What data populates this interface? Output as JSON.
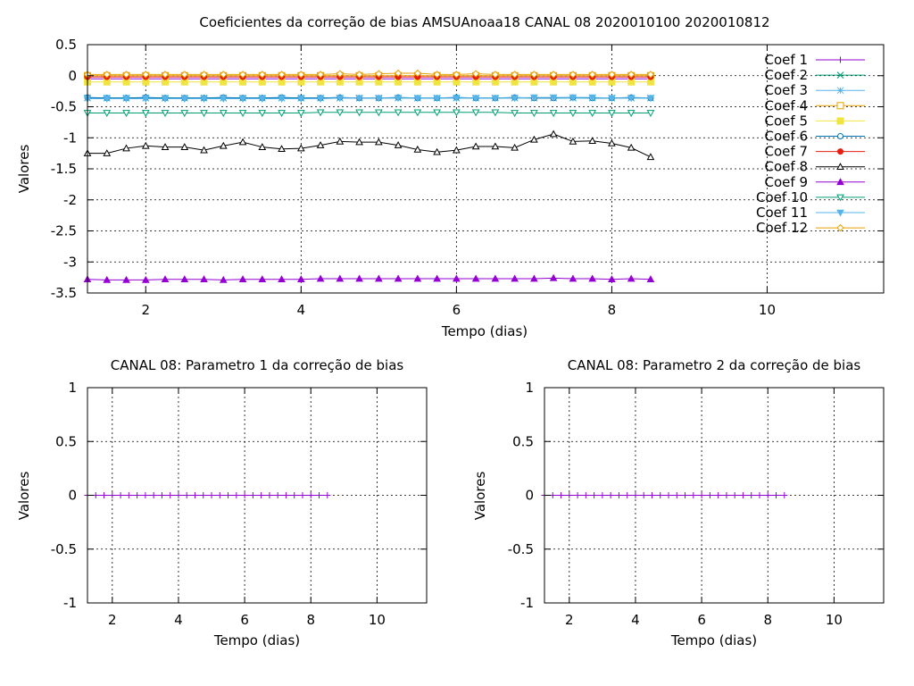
{
  "chart_data": [
    {
      "type": "line",
      "title": "Coeficientes da correção de bias AMSUAnoaa18 CANAL 08 2020010100 2020010812",
      "xlabel": "Tempo (dias)",
      "ylabel": "Valores",
      "xlim": [
        1.25,
        11.5
      ],
      "ylim": [
        -3.5,
        0.5
      ],
      "xticks": [
        2,
        4,
        6,
        8,
        10
      ],
      "yticks": [
        0.5,
        0,
        -0.5,
        -1,
        -1.5,
        -2,
        -2.5,
        -3,
        -3.5
      ],
      "ytick_labels": [
        "0.5",
        "0",
        "-0.5",
        "-1",
        "-1.5",
        "-2",
        "-2.5",
        "-3",
        "-3.5"
      ],
      "grid": true,
      "legend": "top-right",
      "x": [
        1.25,
        1.5,
        1.75,
        2.0,
        2.25,
        2.5,
        2.75,
        3.0,
        3.25,
        3.5,
        3.75,
        4.0,
        4.25,
        4.5,
        4.75,
        5.0,
        5.25,
        5.5,
        5.75,
        6.0,
        6.25,
        6.5,
        6.75,
        7.0,
        7.25,
        7.5,
        7.75,
        8.0,
        8.25,
        8.5
      ],
      "series": [
        {
          "name": "Coef 1",
          "color": "#9400d3",
          "marker": "plus",
          "values": [
            -0.05,
            -0.05,
            -0.05,
            -0.05,
            -0.05,
            -0.05,
            -0.05,
            -0.05,
            -0.05,
            -0.05,
            -0.05,
            -0.05,
            -0.05,
            -0.05,
            -0.05,
            -0.05,
            -0.05,
            -0.05,
            -0.05,
            -0.05,
            -0.05,
            -0.05,
            -0.05,
            -0.05,
            -0.05,
            -0.05,
            -0.05,
            -0.05,
            -0.05,
            -0.05
          ]
        },
        {
          "name": "Coef 2",
          "color": "#009e73",
          "marker": "x",
          "values": [
            -0.36,
            -0.36,
            -0.36,
            -0.36,
            -0.36,
            -0.36,
            -0.36,
            -0.36,
            -0.36,
            -0.36,
            -0.36,
            -0.36,
            -0.36,
            -0.36,
            -0.36,
            -0.36,
            -0.36,
            -0.36,
            -0.36,
            -0.36,
            -0.36,
            -0.36,
            -0.36,
            -0.36,
            -0.36,
            -0.36,
            -0.36,
            -0.36,
            -0.36,
            -0.36
          ]
        },
        {
          "name": "Coef 3",
          "color": "#56b4e9",
          "marker": "star",
          "values": [
            -0.36,
            -0.36,
            -0.36,
            -0.36,
            -0.36,
            -0.36,
            -0.36,
            -0.36,
            -0.36,
            -0.36,
            -0.36,
            -0.36,
            -0.36,
            -0.36,
            -0.36,
            -0.36,
            -0.36,
            -0.36,
            -0.36,
            -0.36,
            -0.36,
            -0.36,
            -0.36,
            -0.36,
            -0.36,
            -0.36,
            -0.36,
            -0.36,
            -0.36,
            -0.36
          ]
        },
        {
          "name": "Coef 4",
          "color": "#e69f00",
          "marker": "square-open",
          "values": [
            0.0,
            0.0,
            0.0,
            0.0,
            0.0,
            0.0,
            0.0,
            0.0,
            0.0,
            0.0,
            0.0,
            0.0,
            0.0,
            0.0,
            0.0,
            0.0,
            0.0,
            0.0,
            0.0,
            0.0,
            0.0,
            0.0,
            0.0,
            0.0,
            0.0,
            0.0,
            0.0,
            0.0,
            0.0,
            0.0
          ]
        },
        {
          "name": "Coef 5",
          "color": "#f0e442",
          "marker": "square-filled",
          "values": [
            -0.1,
            -0.1,
            -0.1,
            -0.1,
            -0.1,
            -0.1,
            -0.1,
            -0.1,
            -0.1,
            -0.1,
            -0.1,
            -0.1,
            -0.1,
            -0.1,
            -0.1,
            -0.1,
            -0.1,
            -0.1,
            -0.1,
            -0.1,
            -0.1,
            -0.1,
            -0.1,
            -0.1,
            -0.1,
            -0.1,
            -0.1,
            -0.1,
            -0.1,
            -0.1
          ]
        },
        {
          "name": "Coef 6",
          "color": "#0072b2",
          "marker": "circle-open",
          "values": [
            -0.35,
            -0.36,
            -0.36,
            -0.35,
            -0.36,
            -0.36,
            -0.36,
            -0.35,
            -0.36,
            -0.36,
            -0.35,
            -0.36,
            -0.36,
            -0.35,
            -0.36,
            -0.36,
            -0.35,
            -0.36,
            -0.36,
            -0.35,
            -0.36,
            -0.36,
            -0.35,
            -0.36,
            -0.36,
            -0.35,
            -0.36,
            -0.36,
            -0.35,
            -0.36
          ]
        },
        {
          "name": "Coef 7",
          "color": "#e51e10",
          "marker": "circle-filled",
          "values": [
            -0.02,
            -0.02,
            -0.02,
            -0.02,
            -0.02,
            -0.02,
            -0.02,
            -0.02,
            -0.02,
            -0.02,
            -0.02,
            -0.02,
            -0.02,
            -0.02,
            -0.02,
            -0.02,
            -0.02,
            -0.02,
            -0.02,
            -0.02,
            -0.02,
            -0.02,
            -0.02,
            -0.02,
            -0.02,
            -0.02,
            -0.02,
            -0.02,
            -0.02,
            -0.02
          ]
        },
        {
          "name": "Coef 8",
          "color": "#000000",
          "marker": "triangle-open",
          "values": [
            -1.25,
            -1.25,
            -1.17,
            -1.13,
            -1.15,
            -1.15,
            -1.2,
            -1.13,
            -1.07,
            -1.15,
            -1.18,
            -1.17,
            -1.12,
            -1.06,
            -1.07,
            -1.07,
            -1.12,
            -1.19,
            -1.23,
            -1.2,
            -1.14,
            -1.14,
            -1.16,
            -1.03,
            -0.94,
            -1.06,
            -1.05,
            -1.09,
            -1.16,
            -1.31
          ]
        },
        {
          "name": "Coef 9",
          "color": "#9400d3",
          "marker": "triangle-filled",
          "values": [
            -3.28,
            -3.29,
            -3.29,
            -3.29,
            -3.28,
            -3.28,
            -3.28,
            -3.29,
            -3.28,
            -3.28,
            -3.28,
            -3.28,
            -3.27,
            -3.27,
            -3.27,
            -3.27,
            -3.27,
            -3.27,
            -3.27,
            -3.27,
            -3.27,
            -3.27,
            -3.27,
            -3.27,
            -3.26,
            -3.27,
            -3.27,
            -3.28,
            -3.27,
            -3.28
          ]
        },
        {
          "name": "Coef 10",
          "color": "#009e73",
          "marker": "triangle-down-open",
          "values": [
            -0.6,
            -0.6,
            -0.6,
            -0.6,
            -0.6,
            -0.6,
            -0.6,
            -0.6,
            -0.6,
            -0.6,
            -0.6,
            -0.6,
            -0.59,
            -0.59,
            -0.59,
            -0.59,
            -0.59,
            -0.59,
            -0.59,
            -0.59,
            -0.59,
            -0.59,
            -0.6,
            -0.6,
            -0.6,
            -0.6,
            -0.6,
            -0.6,
            -0.6,
            -0.6
          ]
        },
        {
          "name": "Coef 11",
          "color": "#56b4e9",
          "marker": "triangle-down-filled",
          "values": [
            -0.37,
            -0.37,
            -0.37,
            -0.37,
            -0.37,
            -0.37,
            -0.37,
            -0.37,
            -0.37,
            -0.37,
            -0.37,
            -0.37,
            -0.37,
            -0.36,
            -0.36,
            -0.36,
            -0.36,
            -0.36,
            -0.36,
            -0.36,
            -0.36,
            -0.36,
            -0.36,
            -0.35,
            -0.35,
            -0.35,
            -0.35,
            -0.36,
            -0.36,
            -0.36
          ]
        },
        {
          "name": "Coef 12",
          "color": "#e69f00",
          "marker": "diamond-open",
          "values": [
            0.02,
            0.02,
            0.02,
            0.02,
            0.02,
            0.02,
            0.02,
            0.02,
            0.02,
            0.02,
            0.02,
            0.02,
            0.02,
            0.03,
            0.02,
            0.03,
            0.04,
            0.04,
            0.02,
            0.02,
            0.03,
            0.02,
            0.02,
            0.02,
            0.02,
            0.02,
            0.02,
            0.02,
            0.02,
            0.02
          ]
        }
      ]
    },
    {
      "type": "line",
      "title": "CANAL 08: Parametro 1 da correção de bias",
      "xlabel": "Tempo (dias)",
      "ylabel": "Valores",
      "xlim": [
        1.25,
        11.5
      ],
      "ylim": [
        -1,
        1
      ],
      "xticks": [
        2,
        4,
        6,
        8,
        10
      ],
      "yticks": [
        1,
        0.5,
        0,
        -0.5,
        -1
      ],
      "ytick_labels": [
        "1",
        "0.5",
        "0",
        "-0.5",
        "-1"
      ],
      "grid": true,
      "x": [
        1.25,
        1.5,
        1.75,
        2.0,
        2.25,
        2.5,
        2.75,
        3.0,
        3.25,
        3.5,
        3.75,
        4.0,
        4.25,
        4.5,
        4.75,
        5.0,
        5.25,
        5.5,
        5.75,
        6.0,
        6.25,
        6.5,
        6.75,
        7.0,
        7.25,
        7.5,
        7.75,
        8.0,
        8.25,
        8.5
      ],
      "series": [
        {
          "color": "#9400d3",
          "marker": "plus",
          "values": [
            0,
            0,
            0,
            0,
            0,
            0,
            0,
            0,
            0,
            0,
            0,
            0,
            0,
            0,
            0,
            0,
            0,
            0,
            0,
            0,
            0,
            0,
            0,
            0,
            0,
            0,
            0,
            0,
            0,
            0
          ]
        }
      ]
    },
    {
      "type": "line",
      "title": "CANAL 08: Parametro 2 da correção de bias",
      "xlabel": "Tempo (dias)",
      "ylabel": "Valores",
      "xlim": [
        1.25,
        11.5
      ],
      "ylim": [
        -1,
        1
      ],
      "xticks": [
        2,
        4,
        6,
        8,
        10
      ],
      "yticks": [
        1,
        0.5,
        0,
        -0.5,
        -1
      ],
      "ytick_labels": [
        "1",
        "0.5",
        "0",
        "-0.5",
        "-1"
      ],
      "grid": true,
      "x": [
        1.25,
        1.5,
        1.75,
        2.0,
        2.25,
        2.5,
        2.75,
        3.0,
        3.25,
        3.5,
        3.75,
        4.0,
        4.25,
        4.5,
        4.75,
        5.0,
        5.25,
        5.5,
        5.75,
        6.0,
        6.25,
        6.5,
        6.75,
        7.0,
        7.25,
        7.5,
        7.75,
        8.0,
        8.25,
        8.5
      ],
      "series": [
        {
          "color": "#9400d3",
          "marker": "plus",
          "values": [
            0,
            0,
            0,
            0,
            0,
            0,
            0,
            0,
            0,
            0,
            0,
            0,
            0,
            0,
            0,
            0,
            0,
            0,
            0,
            0,
            0,
            0,
            0,
            0,
            0,
            0,
            0,
            0,
            0,
            0
          ]
        }
      ]
    }
  ]
}
